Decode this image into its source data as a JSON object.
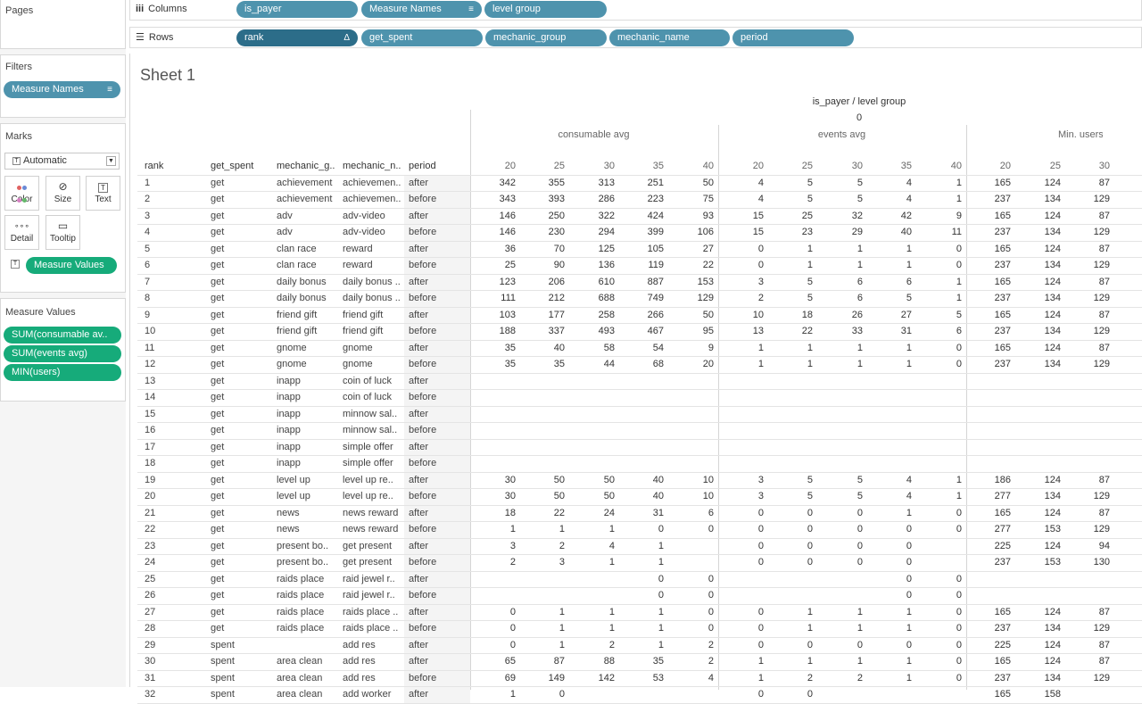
{
  "left": {
    "pages_title": "Pages",
    "filters_title": "Filters",
    "filter_pill": "Measure Names",
    "marks_title": "Marks",
    "mark_type": "Automatic",
    "mark_buttons": [
      "Color",
      "Size",
      "Text",
      "Detail",
      "Tooltip"
    ],
    "measure_values_pill": "Measure Values",
    "measure_values_title": "Measure Values",
    "measure_values": [
      "SUM(consumable av..",
      "SUM(events avg)",
      "MIN(users)"
    ]
  },
  "shelves": {
    "columns_label": "Columns",
    "columns": [
      "is_payer",
      "Measure Names",
      "level group"
    ],
    "rows_label": "Rows",
    "rows": [
      "rank",
      "get_spent",
      "mechanic_group",
      "mechanic_name",
      "period"
    ],
    "rank_glyph": "Δ",
    "sort_glyph": "≡"
  },
  "view": {
    "sheet_title": "Sheet 1",
    "col_header": "is_payer / level group",
    "payer_value": "0",
    "measures": [
      "consumable avg",
      "events avg",
      "Min. users"
    ],
    "row_headers": [
      "rank",
      "get_spent",
      "mechanic_g..",
      "mechanic_n..",
      "period"
    ],
    "levels_full": [
      "20",
      "25",
      "30",
      "35",
      "40"
    ],
    "levels_partial": [
      "20",
      "25",
      "30"
    ]
  },
  "table_rows": [
    [
      "1",
      "get",
      "achievement",
      "achievemen..",
      "after",
      "342",
      "355",
      "313",
      "251",
      "50",
      "4",
      "5",
      "5",
      "4",
      "1",
      "165",
      "124",
      "87"
    ],
    [
      "2",
      "get",
      "achievement",
      "achievemen..",
      "before",
      "343",
      "393",
      "286",
      "223",
      "75",
      "4",
      "5",
      "5",
      "4",
      "1",
      "237",
      "134",
      "129"
    ],
    [
      "3",
      "get",
      "adv",
      "adv-video",
      "after",
      "146",
      "250",
      "322",
      "424",
      "93",
      "15",
      "25",
      "32",
      "42",
      "9",
      "165",
      "124",
      "87"
    ],
    [
      "4",
      "get",
      "adv",
      "adv-video",
      "before",
      "146",
      "230",
      "294",
      "399",
      "106",
      "15",
      "23",
      "29",
      "40",
      "11",
      "237",
      "134",
      "129"
    ],
    [
      "5",
      "get",
      "clan race",
      "reward",
      "after",
      "36",
      "70",
      "125",
      "105",
      "27",
      "0",
      "1",
      "1",
      "1",
      "0",
      "165",
      "124",
      "87"
    ],
    [
      "6",
      "get",
      "clan race",
      "reward",
      "before",
      "25",
      "90",
      "136",
      "119",
      "22",
      "0",
      "1",
      "1",
      "1",
      "0",
      "237",
      "134",
      "129"
    ],
    [
      "7",
      "get",
      "daily bonus",
      "daily bonus ..",
      "after",
      "123",
      "206",
      "610",
      "887",
      "153",
      "3",
      "5",
      "6",
      "6",
      "1",
      "165",
      "124",
      "87"
    ],
    [
      "8",
      "get",
      "daily bonus",
      "daily bonus ..",
      "before",
      "111",
      "212",
      "688",
      "749",
      "129",
      "2",
      "5",
      "6",
      "5",
      "1",
      "237",
      "134",
      "129"
    ],
    [
      "9",
      "get",
      "friend gift",
      "friend gift",
      "after",
      "103",
      "177",
      "258",
      "266",
      "50",
      "10",
      "18",
      "26",
      "27",
      "5",
      "165",
      "124",
      "87"
    ],
    [
      "10",
      "get",
      "friend gift",
      "friend gift",
      "before",
      "188",
      "337",
      "493",
      "467",
      "95",
      "13",
      "22",
      "33",
      "31",
      "6",
      "237",
      "134",
      "129"
    ],
    [
      "11",
      "get",
      "gnome",
      "gnome",
      "after",
      "35",
      "40",
      "58",
      "54",
      "9",
      "1",
      "1",
      "1",
      "1",
      "0",
      "165",
      "124",
      "87"
    ],
    [
      "12",
      "get",
      "gnome",
      "gnome",
      "before",
      "35",
      "35",
      "44",
      "68",
      "20",
      "1",
      "1",
      "1",
      "1",
      "0",
      "237",
      "134",
      "129"
    ],
    [
      "13",
      "get",
      "inapp",
      "coin of luck",
      "after",
      "",
      "",
      "",
      "",
      "",
      "",
      "",
      "",
      "",
      "",
      "",
      "",
      ""
    ],
    [
      "14",
      "get",
      "inapp",
      "coin of luck",
      "before",
      "",
      "",
      "",
      "",
      "",
      "",
      "",
      "",
      "",
      "",
      "",
      "",
      ""
    ],
    [
      "15",
      "get",
      "inapp",
      "minnow sal..",
      "after",
      "",
      "",
      "",
      "",
      "",
      "",
      "",
      "",
      "",
      "",
      "",
      "",
      ""
    ],
    [
      "16",
      "get",
      "inapp",
      "minnow sal..",
      "before",
      "",
      "",
      "",
      "",
      "",
      "",
      "",
      "",
      "",
      "",
      "",
      "",
      ""
    ],
    [
      "17",
      "get",
      "inapp",
      "simple offer",
      "after",
      "",
      "",
      "",
      "",
      "",
      "",
      "",
      "",
      "",
      "",
      "",
      "",
      ""
    ],
    [
      "18",
      "get",
      "inapp",
      "simple offer",
      "before",
      "",
      "",
      "",
      "",
      "",
      "",
      "",
      "",
      "",
      "",
      "",
      "",
      ""
    ],
    [
      "19",
      "get",
      "level up",
      "level up re..",
      "after",
      "30",
      "50",
      "50",
      "40",
      "10",
      "3",
      "5",
      "5",
      "4",
      "1",
      "186",
      "124",
      "87"
    ],
    [
      "20",
      "get",
      "level up",
      "level up re..",
      "before",
      "30",
      "50",
      "50",
      "40",
      "10",
      "3",
      "5",
      "5",
      "4",
      "1",
      "277",
      "134",
      "129"
    ],
    [
      "21",
      "get",
      "news",
      "news reward",
      "after",
      "18",
      "22",
      "24",
      "31",
      "6",
      "0",
      "0",
      "0",
      "1",
      "0",
      "165",
      "124",
      "87"
    ],
    [
      "22",
      "get",
      "news",
      "news reward",
      "before",
      "1",
      "1",
      "1",
      "0",
      "0",
      "0",
      "0",
      "0",
      "0",
      "0",
      "277",
      "153",
      "129"
    ],
    [
      "23",
      "get",
      "present bo..",
      "get present",
      "after",
      "3",
      "2",
      "4",
      "1",
      "",
      "0",
      "0",
      "0",
      "0",
      "",
      "225",
      "124",
      "94"
    ],
    [
      "24",
      "get",
      "present bo..",
      "get present",
      "before",
      "2",
      "3",
      "1",
      "1",
      "",
      "0",
      "0",
      "0",
      "0",
      "",
      "237",
      "153",
      "130"
    ],
    [
      "25",
      "get",
      "raids place",
      "raid jewel r..",
      "after",
      "",
      "",
      "",
      "0",
      "0",
      "",
      "",
      "",
      "0",
      "0",
      "",
      "",
      ""
    ],
    [
      "26",
      "get",
      "raids place",
      "raid jewel r..",
      "before",
      "",
      "",
      "",
      "0",
      "0",
      "",
      "",
      "",
      "0",
      "0",
      "",
      "",
      ""
    ],
    [
      "27",
      "get",
      "raids place",
      "raids place ..",
      "after",
      "0",
      "1",
      "1",
      "1",
      "0",
      "0",
      "1",
      "1",
      "1",
      "0",
      "165",
      "124",
      "87"
    ],
    [
      "28",
      "get",
      "raids place",
      "raids place ..",
      "before",
      "0",
      "1",
      "1",
      "1",
      "0",
      "0",
      "1",
      "1",
      "1",
      "0",
      "237",
      "134",
      "129"
    ],
    [
      "29",
      "spent",
      "",
      "add res",
      "after",
      "0",
      "1",
      "2",
      "1",
      "2",
      "0",
      "0",
      "0",
      "0",
      "0",
      "225",
      "124",
      "87"
    ],
    [
      "30",
      "spent",
      "area clean",
      "add res",
      "after",
      "65",
      "87",
      "88",
      "35",
      "2",
      "1",
      "1",
      "1",
      "1",
      "0",
      "165",
      "124",
      "87"
    ],
    [
      "31",
      "spent",
      "area clean",
      "add res",
      "before",
      "69",
      "149",
      "142",
      "53",
      "4",
      "1",
      "2",
      "2",
      "1",
      "0",
      "237",
      "134",
      "129"
    ],
    [
      "32",
      "spent",
      "area clean",
      "add worker",
      "after",
      "1",
      "0",
      "",
      "",
      "",
      "0",
      "0",
      "",
      "",
      "",
      "165",
      "158",
      ""
    ]
  ]
}
